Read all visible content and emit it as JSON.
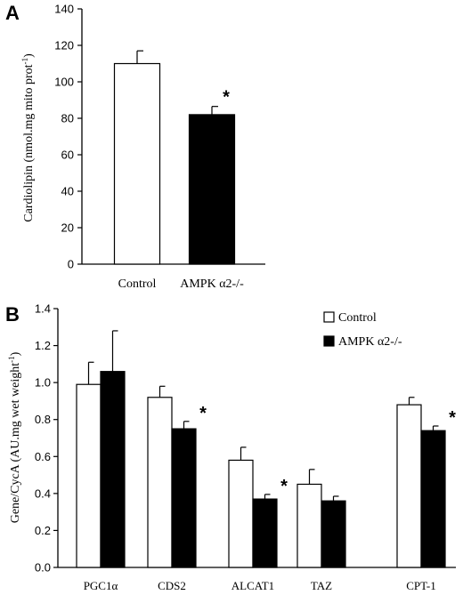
{
  "chart_data": [
    {
      "panel_label": "A",
      "type": "bar",
      "categories": [
        "Control",
        "AMPK α2-/-"
      ],
      "values": [
        110,
        82
      ],
      "errors": [
        7,
        4.5
      ],
      "significance": [
        "",
        "*"
      ],
      "bar_colors": [
        "#ffffff",
        "#000000"
      ],
      "ylabel": "Cardiolipin (nmol.mg mito prot",
      "ylabel_sup": "-1",
      "ylabel_end": ")",
      "ylim": [
        0,
        140
      ],
      "yticks": [
        0,
        20,
        40,
        60,
        80,
        100,
        120,
        140
      ],
      "ytick_labels": [
        "0",
        "20",
        "40",
        "60",
        "80",
        "100",
        "120",
        "140"
      ],
      "grid": false,
      "legend": "none"
    },
    {
      "panel_label": "B",
      "type": "bar",
      "categories": [
        "PGC1α",
        "CDS2",
        "ALCAT1",
        "TAZ",
        "CPT-1"
      ],
      "series": [
        {
          "name": "Control",
          "color": "#ffffff",
          "values": [
            0.99,
            0.92,
            0.58,
            0.45,
            0.88
          ],
          "errors": [
            0.12,
            0.06,
            0.07,
            0.08,
            0.04
          ],
          "significance": [
            "",
            "",
            "",
            "",
            ""
          ]
        },
        {
          "name": "AMPK α2-/-",
          "color": "#000000",
          "values": [
            1.06,
            0.75,
            0.37,
            0.36,
            0.74
          ],
          "errors": [
            0.22,
            0.04,
            0.025,
            0.025,
            0.025
          ],
          "significance": [
            "",
            "*",
            "*",
            "",
            "*"
          ]
        }
      ],
      "ylabel": "Gene/CycA (AU.mg wet weight",
      "ylabel_sup": "-1",
      "ylabel_end": ")",
      "ylim": [
        0,
        1.4
      ],
      "yticks": [
        0,
        0.2,
        0.4,
        0.6,
        0.8,
        1.0,
        1.2,
        1.4
      ],
      "ytick_labels": [
        "0.0",
        "0.2",
        "0.4",
        "0.6",
        "0.8",
        "1.0",
        "1.2",
        "1.4"
      ],
      "grid": false,
      "legend": "top-right"
    }
  ]
}
